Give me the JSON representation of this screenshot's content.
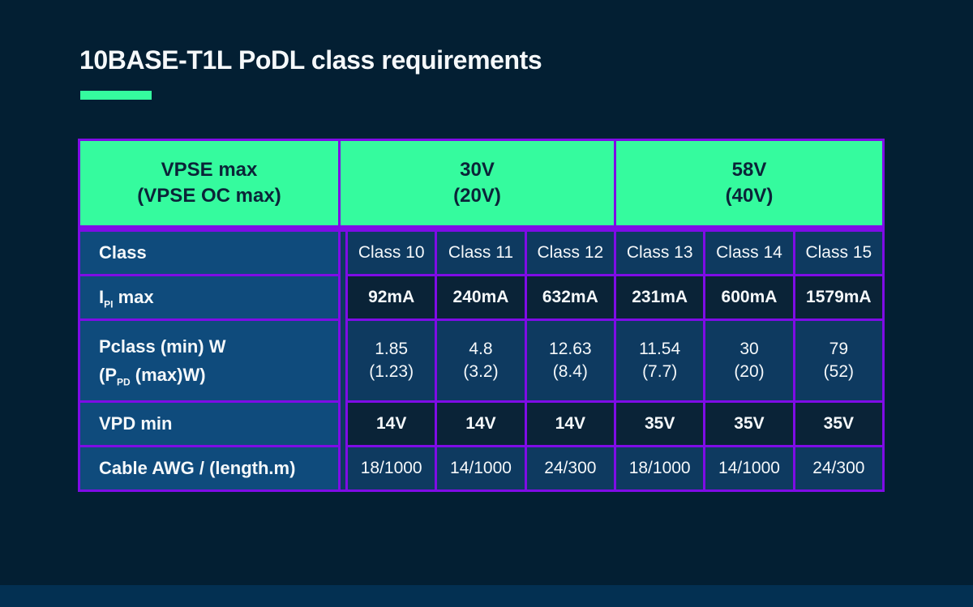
{
  "title": "10BASE-T1L PoDL class requirements",
  "colors": {
    "background": "#031f33",
    "footer_bar": "#033052",
    "header_green": "#35fb9e",
    "border_purple": "#7f0ce6",
    "label_blue": "#0f4b7c",
    "cell_blue": "#0e3a60",
    "cell_dark": "#0a2337",
    "header_text": "#0b2438",
    "text_white": "#f5f8fa"
  },
  "chart_data": {
    "type": "table",
    "title": "10BASE-T1L PoDL class requirements",
    "header_groups": [
      {
        "line1": "VPSE max",
        "line2": "(VPSE OC max)",
        "cols": 1
      },
      {
        "line1": "30V",
        "line2": "(20V)",
        "cols": 3
      },
      {
        "line1": "58V",
        "line2": "(40V)",
        "cols": 3
      }
    ],
    "columns": [
      "Class 10",
      "Class 11",
      "Class 12",
      "Class 13",
      "Class 14",
      "Class 15"
    ],
    "rows": [
      {
        "key": "class",
        "label": [
          {
            "text": "Class"
          }
        ],
        "values": [
          "Class 10",
          "Class 11",
          "Class 12",
          "Class 13",
          "Class 14",
          "Class 15"
        ],
        "shade": "blue"
      },
      {
        "key": "ipi-max",
        "label": [
          {
            "text": "I"
          },
          {
            "sub": "PI"
          },
          {
            "text": " max"
          }
        ],
        "values": [
          "92mA",
          "240mA",
          "632mA",
          "231mA",
          "600mA",
          "1579mA"
        ],
        "shade": "dark"
      },
      {
        "key": "pclass",
        "label": [
          {
            "text": "Pclass (min) W"
          },
          {
            "br": true
          },
          {
            "text": "(P"
          },
          {
            "sub": "PD"
          },
          {
            "text": " (max)W)"
          }
        ],
        "values": [
          "1.85\n(1.23)",
          "4.8\n(3.2)",
          "12.63\n(8.4)",
          "11.54\n(7.7)",
          "30\n(20)",
          "79\n(52)"
        ],
        "shade": "blue"
      },
      {
        "key": "vpd-min",
        "label": [
          {
            "text": "VPD min"
          }
        ],
        "values": [
          "14V",
          "14V",
          "14V",
          "35V",
          "35V",
          "35V"
        ],
        "shade": "dark"
      },
      {
        "key": "cable-awg",
        "label": [
          {
            "text": "Cable AWG / (length.m)"
          }
        ],
        "values": [
          "18/1000",
          "14/1000",
          "24/300",
          "18/1000",
          "14/1000",
          "24/300"
        ],
        "shade": "blue"
      }
    ]
  }
}
